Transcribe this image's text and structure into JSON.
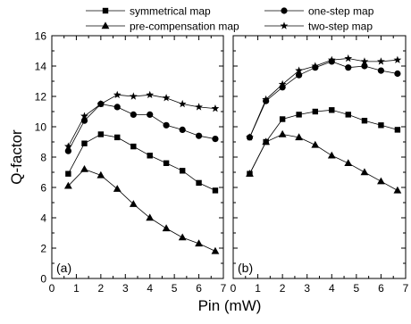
{
  "chart_data": {
    "type": "line",
    "xlabel": "Pin (mW)",
    "ylabel": "Q-factor",
    "xlim": [
      0,
      7
    ],
    "ylim": [
      0,
      16
    ],
    "x_ticks": [
      "0",
      "1",
      "2",
      "3",
      "4",
      "5",
      "6",
      "7"
    ],
    "y_ticks": [
      "0",
      "2",
      "4",
      "6",
      "8",
      "10",
      "12",
      "14",
      "16"
    ],
    "grid": false,
    "legend": {
      "placement": "top",
      "entries": [
        {
          "label": "symmetrical map",
          "marker": "square"
        },
        {
          "label": "pre-compensation map",
          "marker": "triangle"
        },
        {
          "label": "one-step map",
          "marker": "circle"
        },
        {
          "label": "two-step map",
          "marker": "star"
        }
      ]
    },
    "panels": [
      {
        "label": "(a)",
        "x": [
          0.67,
          1.33,
          2.0,
          2.67,
          3.33,
          4.0,
          4.67,
          5.33,
          6.0,
          6.67
        ],
        "series": [
          {
            "name": "symmetrical map",
            "marker": "square",
            "values": [
              6.9,
              8.9,
              9.5,
              9.3,
              8.7,
              8.1,
              7.6,
              7.1,
              6.3,
              5.8
            ]
          },
          {
            "name": "pre-compensation map",
            "marker": "triangle",
            "values": [
              6.1,
              7.2,
              6.8,
              5.9,
              4.9,
              4.0,
              3.3,
              2.7,
              2.3,
              1.8
            ]
          },
          {
            "name": "one-step map",
            "marker": "circle",
            "values": [
              8.4,
              10.4,
              11.5,
              11.3,
              10.8,
              10.8,
              10.1,
              9.8,
              9.4,
              9.2
            ]
          },
          {
            "name": "two-step map",
            "marker": "star",
            "values": [
              8.7,
              10.7,
              11.5,
              12.1,
              12.0,
              12.1,
              11.9,
              11.5,
              11.3,
              11.2
            ]
          }
        ]
      },
      {
        "label": "(b)",
        "x": [
          0.67,
          1.33,
          2.0,
          2.67,
          3.33,
          4.0,
          4.67,
          5.33,
          6.0,
          6.67
        ],
        "series": [
          {
            "name": "symmetrical map",
            "marker": "square",
            "values": [
              6.9,
              9.0,
              10.5,
              10.8,
              11.0,
              11.1,
              10.8,
              10.4,
              10.1,
              9.8
            ]
          },
          {
            "name": "pre-compensation map",
            "marker": "triangle",
            "values": [
              6.9,
              9.0,
              9.5,
              9.3,
              8.8,
              8.1,
              7.6,
              7.0,
              6.4,
              5.8
            ]
          },
          {
            "name": "one-step map",
            "marker": "circle",
            "values": [
              9.3,
              11.7,
              12.6,
              13.4,
              13.9,
              14.3,
              13.9,
              14.0,
              13.7,
              13.5
            ]
          },
          {
            "name": "two-step map",
            "marker": "star",
            "values": [
              9.3,
              11.8,
              12.8,
              13.7,
              14.0,
              14.4,
              14.5,
              14.3,
              14.3,
              14.4
            ]
          }
        ]
      }
    ]
  }
}
